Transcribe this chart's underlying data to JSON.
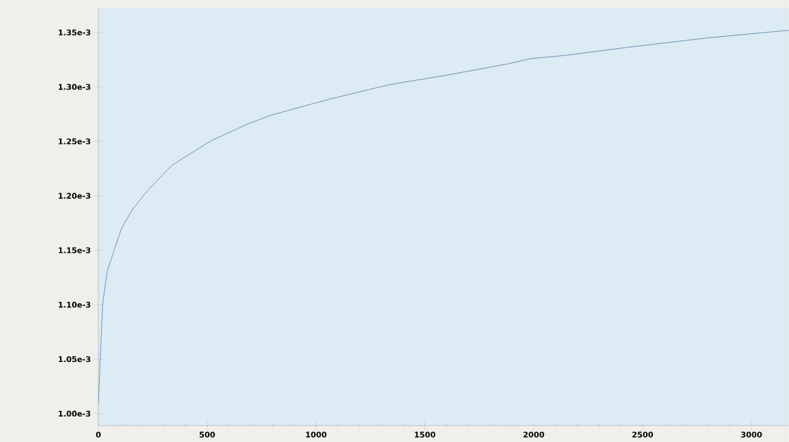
{
  "chart_data": {
    "type": "line",
    "x": [
      0,
      9,
      20,
      41,
      74,
      106,
      159,
      231,
      338,
      481,
      523,
      686,
      793,
      1066,
      1336,
      1606,
      1878,
      1986,
      2148,
      2418,
      2798,
      3172
    ],
    "series": [
      {
        "color": "#6f95b0",
        "values": [
          0.001008,
          0.001051,
          0.001101,
          0.001131,
          0.001151,
          0.00117,
          0.001188,
          0.001206,
          0.001228,
          0.001246,
          0.001251,
          0.001266,
          0.001274,
          0.001289,
          0.001302,
          0.001311,
          0.001321,
          0.001326,
          0.001329,
          0.001336,
          0.001345,
          0.001352
        ]
      }
    ],
    "xlim": [
      0,
      3172
    ],
    "ylim": [
      0.000989,
      0.001372
    ],
    "xticks": [
      0,
      500,
      1000,
      1500,
      2000,
      2500,
      3000
    ],
    "yticks": [
      {
        "value": 0.001,
        "label": "1.00e-3"
      },
      {
        "value": 0.00105,
        "label": "1.05e-3"
      },
      {
        "value": 0.0011,
        "label": "1.10e-3"
      },
      {
        "value": 0.00115,
        "label": "1.15e-3"
      },
      {
        "value": 0.0012,
        "label": "1.20e-3"
      },
      {
        "value": 0.00125,
        "label": "1.25e-3"
      },
      {
        "value": 0.0013,
        "label": "1.30e-3"
      },
      {
        "value": 0.00135,
        "label": "1.35e-3"
      }
    ],
    "marker": "none",
    "line_style": "solid"
  }
}
